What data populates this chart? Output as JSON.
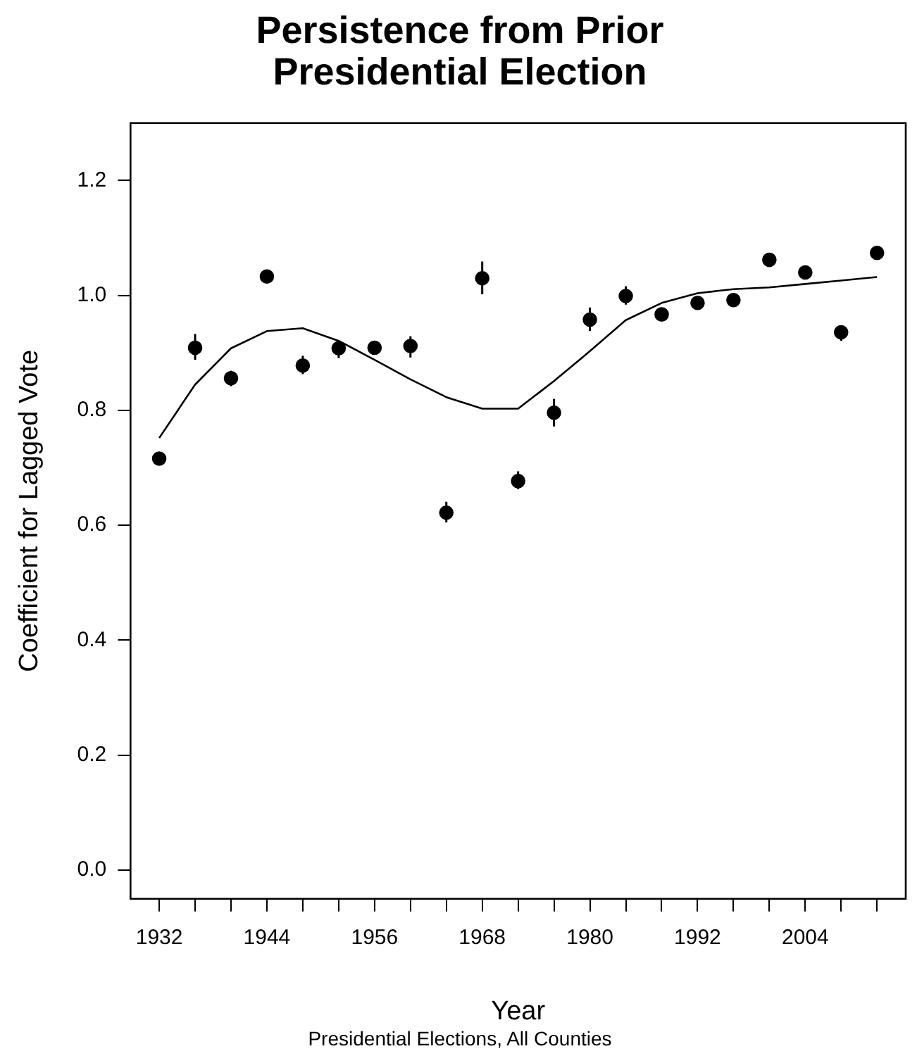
{
  "chart_data": {
    "type": "scatter",
    "title": "Persistence from Prior\nPresidential Election",
    "xlabel": "Year",
    "ylabel": "Coefficient for Lagged Vote",
    "annotations": [
      "Presidential Elections, All Counties"
    ],
    "x": [
      1932,
      1936,
      1940,
      1944,
      1948,
      1952,
      1956,
      1960,
      1964,
      1968,
      1972,
      1976,
      1980,
      1984,
      1988,
      1992,
      1996,
      2000,
      2004,
      2008,
      2012
    ],
    "series": [
      {
        "color": "#000000",
        "marker": "circle",
        "values": [
          0.716,
          0.909,
          0.856,
          1.033,
          0.878,
          0.908,
          0.909,
          0.912,
          0.622,
          1.03,
          0.677,
          0.796,
          0.958,
          0.999,
          0.967,
          0.987,
          0.992,
          1.062,
          1.04,
          0.936,
          1.074
        ],
        "errors": [
          null,
          [
            0.888,
            0.933
          ],
          [
            0.842,
            0.869
          ],
          null,
          [
            0.863,
            0.895
          ],
          [
            0.891,
            0.917
          ],
          null,
          [
            0.892,
            0.929
          ],
          [
            0.605,
            0.641
          ],
          [
            1.002,
            1.059
          ],
          [
            0.663,
            0.694
          ],
          [
            0.772,
            0.82
          ],
          [
            0.938,
            0.979
          ],
          [
            0.984,
            1.016
          ],
          null,
          null,
          null,
          null,
          null,
          [
            0.921,
            0.948
          ],
          null
        ]
      },
      {
        "type": "line",
        "color": "#000000",
        "marker": "none",
        "line_style": "solid",
        "values": [
          0.752,
          0.845,
          0.908,
          0.938,
          0.943,
          0.921,
          0.888,
          0.854,
          0.823,
          0.803,
          0.803,
          0.851,
          0.903,
          0.957,
          0.987,
          1.004,
          1.011,
          1.014,
          1.02,
          1.026,
          1.032
        ]
      }
    ],
    "xlim": [
      1928.8,
      2015.2
    ],
    "xticks": [
      1932,
      {
        "value": 1936,
        "label": null
      },
      {
        "value": 1940,
        "label": null
      },
      1944,
      {
        "value": 1948,
        "label": null
      },
      {
        "value": 1952,
        "label": null
      },
      1956,
      {
        "value": 1960,
        "label": null
      },
      {
        "value": 1964,
        "label": null
      },
      1968,
      {
        "value": 1972,
        "label": null
      },
      {
        "value": 1976,
        "label": null
      },
      1980,
      {
        "value": 1984,
        "label": null
      },
      {
        "value": 1988,
        "label": null
      },
      1992,
      {
        "value": 1996,
        "label": null
      },
      {
        "value": 2000,
        "label": null
      },
      2004,
      {
        "value": 2008,
        "label": null
      },
      {
        "value": 2012,
        "label": null
      }
    ],
    "ylim": [
      -0.05,
      1.3
    ],
    "yticks": [
      {
        "value": 0,
        "label": "0.0"
      },
      {
        "value": 0.2,
        "label": "0.2"
      },
      {
        "value": 0.4,
        "label": "0.4"
      },
      {
        "value": 0.6,
        "label": "0.6"
      },
      {
        "value": 0.8,
        "label": "0.8"
      },
      {
        "value": 1,
        "label": "1.0"
      },
      {
        "value": 1.2,
        "label": "1.2"
      }
    ],
    "grid": false,
    "legend": false
  }
}
